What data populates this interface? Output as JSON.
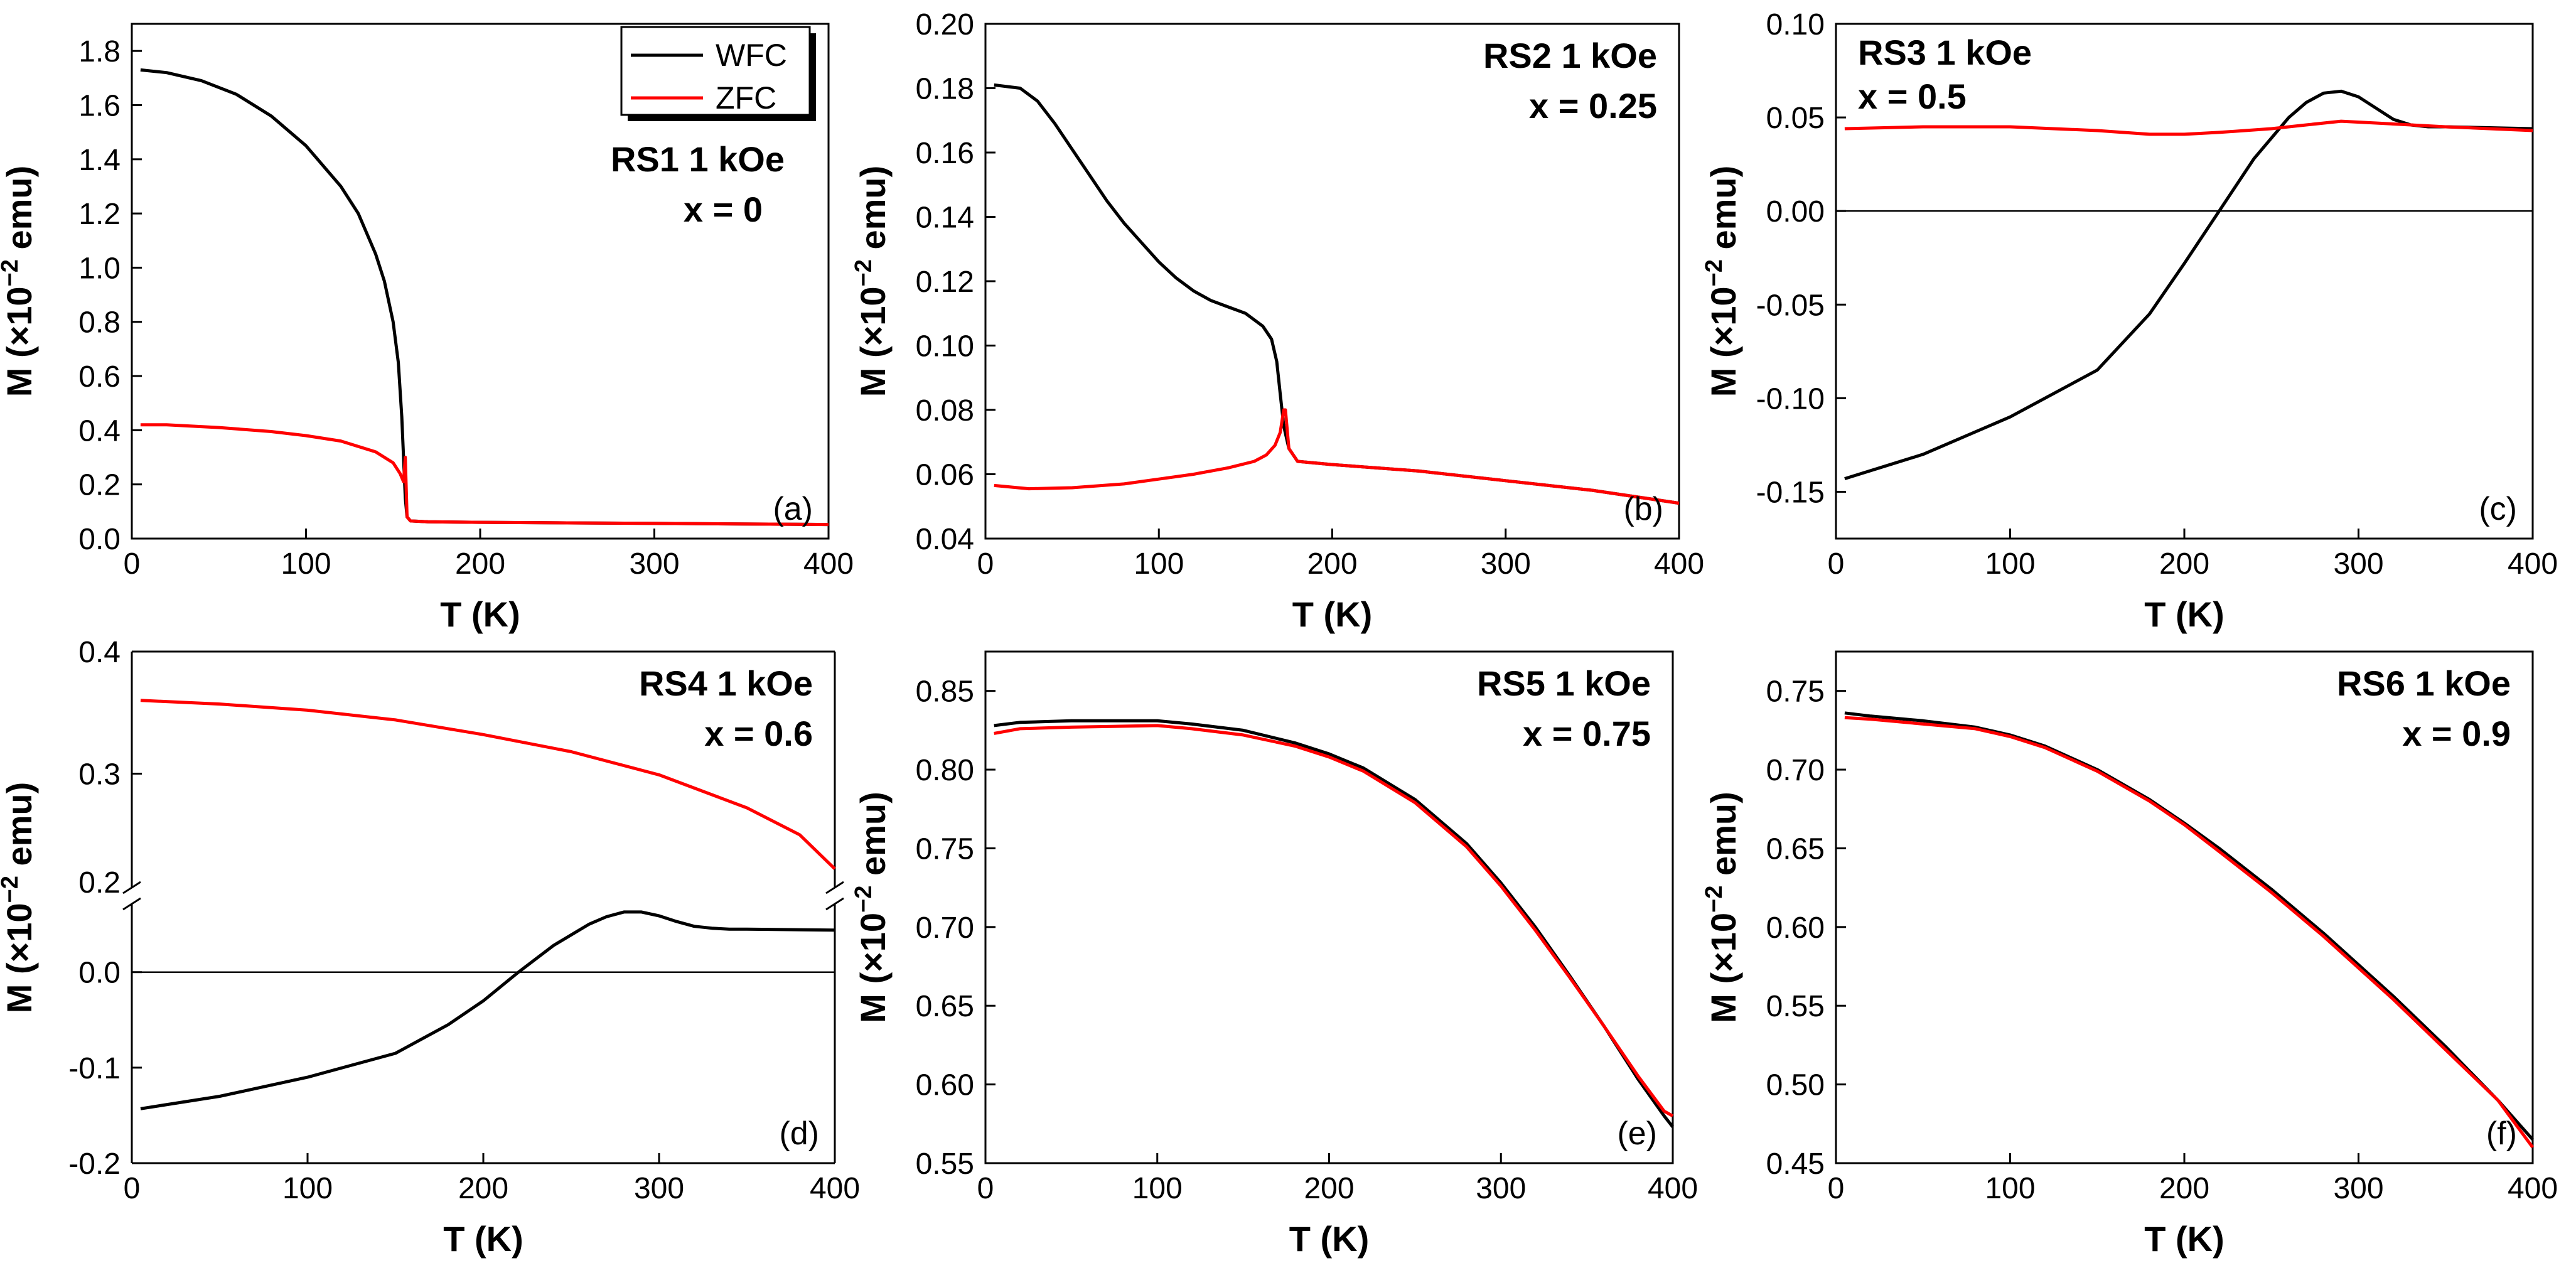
{
  "chart_data": [
    {
      "id": "a",
      "type": "line",
      "panel_letter": "(a)",
      "label_line1": "RS1 1 kOe",
      "label_line2": "x = 0",
      "xlabel": "T (K)",
      "ylabel_prefix": "M (×10",
      "ylabel_exp": "−2",
      "ylabel_suffix": " emu)",
      "xlim": [
        0,
        400
      ],
      "ylim": [
        0,
        1.9
      ],
      "xticks": [
        0,
        100,
        200,
        300,
        400
      ],
      "yticks": [
        0.0,
        0.2,
        0.4,
        0.6,
        0.8,
        1.0,
        1.2,
        1.4,
        1.6,
        1.8
      ],
      "ytick_labels": [
        "0.0",
        "0.2",
        "0.4",
        "0.6",
        "0.8",
        "1.0",
        "1.2",
        "1.4",
        "1.6",
        "1.8"
      ],
      "zero_line": false,
      "legend": {
        "entries": [
          {
            "name": "WFC",
            "color": "#000000"
          },
          {
            "name": "ZFC",
            "color": "#ff0000"
          }
        ]
      },
      "series": [
        {
          "name": "WFC",
          "color": "#000000",
          "x": [
            5,
            20,
            40,
            60,
            80,
            100,
            120,
            130,
            140,
            145,
            150,
            153,
            155,
            156,
            157,
            158,
            160,
            170,
            200,
            250,
            300,
            350,
            400
          ],
          "y": [
            1.73,
            1.72,
            1.69,
            1.64,
            1.56,
            1.45,
            1.3,
            1.2,
            1.05,
            0.95,
            0.8,
            0.65,
            0.45,
            0.3,
            0.15,
            0.08,
            0.065,
            0.062,
            0.06,
            0.058,
            0.056,
            0.054,
            0.052
          ]
        },
        {
          "name": "ZFC",
          "color": "#ff0000",
          "x": [
            5,
            20,
            50,
            80,
            100,
            120,
            140,
            150,
            154,
            156,
            157,
            158,
            160,
            170,
            200,
            250,
            300,
            350,
            400
          ],
          "y": [
            0.42,
            0.42,
            0.41,
            0.395,
            0.38,
            0.36,
            0.32,
            0.28,
            0.24,
            0.21,
            0.3,
            0.08,
            0.065,
            0.062,
            0.06,
            0.058,
            0.056,
            0.054,
            0.052
          ]
        }
      ]
    },
    {
      "id": "b",
      "type": "line",
      "panel_letter": "(b)",
      "label_line1": "RS2 1 kOe",
      "label_line2": "x = 0.25",
      "xlabel": "T (K)",
      "ylabel_prefix": "M (×10",
      "ylabel_exp": "−2",
      "ylabel_suffix": " emu)",
      "xlim": [
        0,
        400
      ],
      "ylim": [
        0.04,
        0.2
      ],
      "xticks": [
        0,
        100,
        200,
        300,
        400
      ],
      "yticks": [
        0.04,
        0.06,
        0.08,
        0.1,
        0.12,
        0.14,
        0.16,
        0.18,
        0.2
      ],
      "ytick_labels": [
        "0.04",
        "0.06",
        "0.08",
        "0.10",
        "0.12",
        "0.14",
        "0.16",
        "0.18",
        "0.20"
      ],
      "zero_line": false,
      "series": [
        {
          "name": "WFC",
          "color": "#000000",
          "x": [
            5,
            20,
            30,
            40,
            50,
            60,
            70,
            80,
            90,
            100,
            110,
            120,
            130,
            140,
            150,
            160,
            165,
            168,
            170,
            172,
            175,
            180,
            200,
            250,
            300,
            350,
            400
          ],
          "y": [
            0.181,
            0.18,
            0.176,
            0.169,
            0.161,
            0.153,
            0.145,
            0.138,
            0.132,
            0.126,
            0.121,
            0.117,
            0.114,
            0.112,
            0.11,
            0.106,
            0.102,
            0.095,
            0.085,
            0.075,
            0.068,
            0.064,
            0.063,
            0.061,
            0.058,
            0.055,
            0.051
          ]
        },
        {
          "name": "ZFC",
          "color": "#ff0000",
          "x": [
            5,
            25,
            50,
            80,
            100,
            120,
            140,
            155,
            162,
            167,
            170,
            172,
            173,
            175,
            180,
            200,
            250,
            300,
            350,
            400
          ],
          "y": [
            0.0565,
            0.0555,
            0.0558,
            0.057,
            0.0585,
            0.06,
            0.062,
            0.064,
            0.066,
            0.069,
            0.073,
            0.08,
            0.08,
            0.068,
            0.064,
            0.063,
            0.061,
            0.058,
            0.055,
            0.051
          ]
        }
      ]
    },
    {
      "id": "c",
      "type": "line",
      "panel_letter": "(c)",
      "label_line1": "RS3 1 kOe",
      "label_line2": "x = 0.5",
      "xlabel": "T (K)",
      "ylabel_prefix": "M (×10",
      "ylabel_exp": "−2",
      "ylabel_suffix": " emu)",
      "xlim": [
        0,
        400
      ],
      "ylim": [
        -0.175,
        0.1
      ],
      "xticks": [
        0,
        100,
        200,
        300,
        400
      ],
      "yticks": [
        -0.15,
        -0.1,
        -0.05,
        0.0,
        0.05,
        0.1
      ],
      "ytick_labels": [
        "-0.15",
        "-0.10",
        "-0.05",
        "0.00",
        "0.05",
        "0.10"
      ],
      "zero_line": true,
      "series": [
        {
          "name": "WFC",
          "color": "#000000",
          "x": [
            5,
            50,
            100,
            150,
            180,
            200,
            220,
            240,
            260,
            270,
            280,
            290,
            300,
            310,
            320,
            330,
            340,
            350,
            400
          ],
          "y": [
            -0.143,
            -0.13,
            -0.11,
            -0.085,
            -0.055,
            -0.028,
            0.0,
            0.028,
            0.05,
            0.058,
            0.063,
            0.064,
            0.061,
            0.055,
            0.049,
            0.046,
            0.045,
            0.045,
            0.044
          ]
        },
        {
          "name": "ZFC",
          "color": "#ff0000",
          "x": [
            5,
            50,
            100,
            150,
            180,
            200,
            220,
            250,
            270,
            290,
            310,
            330,
            350,
            400
          ],
          "y": [
            0.044,
            0.045,
            0.045,
            0.043,
            0.041,
            0.041,
            0.042,
            0.044,
            0.046,
            0.048,
            0.047,
            0.046,
            0.045,
            0.043
          ]
        }
      ]
    },
    {
      "id": "d",
      "type": "line",
      "panel_letter": "(d)",
      "label_line1": "RS4 1 kOe",
      "label_line2": "x = 0.6",
      "xlabel": "T (K)",
      "ylabel_prefix": "M (×10",
      "ylabel_exp": "−2",
      "ylabel_suffix": " emu)",
      "xlim": [
        0,
        400
      ],
      "broken_axis": true,
      "upper_ylim": [
        0.2,
        0.4
      ],
      "upper_yticks": [
        0.2,
        0.3,
        0.4
      ],
      "upper_ytick_labels": [
        "0.2",
        "0.3",
        "0.4"
      ],
      "lower_ylim": [
        -0.2,
        0.08
      ],
      "lower_yticks": [
        -0.2,
        -0.1,
        0.0
      ],
      "lower_ytick_labels": [
        "-0.2",
        "-0.1",
        "0.0"
      ],
      "xticks": [
        0,
        100,
        200,
        300,
        400
      ],
      "zero_line": true,
      "series": [
        {
          "name": "ZFC",
          "color": "#ff0000",
          "segment": "upper",
          "x": [
            5,
            50,
            100,
            150,
            200,
            250,
            300,
            350,
            380,
            400
          ],
          "y": [
            0.36,
            0.357,
            0.352,
            0.344,
            0.332,
            0.318,
            0.299,
            0.272,
            0.25,
            0.222
          ]
        },
        {
          "name": "WFC",
          "color": "#000000",
          "segment": "lower",
          "x": [
            5,
            50,
            100,
            150,
            180,
            200,
            220,
            240,
            260,
            270,
            280,
            290,
            300,
            310,
            320,
            330,
            340,
            350,
            400
          ],
          "y": [
            -0.143,
            -0.13,
            -0.11,
            -0.085,
            -0.055,
            -0.03,
            0.0,
            0.028,
            0.05,
            0.058,
            0.063,
            0.063,
            0.059,
            0.053,
            0.048,
            0.046,
            0.045,
            0.045,
            0.044
          ]
        }
      ]
    },
    {
      "id": "e",
      "type": "line",
      "panel_letter": "(e)",
      "label_line1": "RS5 1 kOe",
      "label_line2": "x = 0.75",
      "xlabel": "T (K)",
      "ylabel_prefix": "M (×10",
      "ylabel_exp": "−2",
      "ylabel_suffix": " emu)",
      "xlim": [
        0,
        400
      ],
      "ylim": [
        0.55,
        0.875
      ],
      "xticks": [
        0,
        100,
        200,
        300,
        400
      ],
      "yticks": [
        0.55,
        0.6,
        0.65,
        0.7,
        0.75,
        0.8,
        0.85
      ],
      "ytick_labels": [
        "0.55",
        "0.60",
        "0.65",
        "0.70",
        "0.75",
        "0.80",
        "0.85"
      ],
      "zero_line": false,
      "series": [
        {
          "name": "WFC",
          "color": "#000000",
          "x": [
            5,
            20,
            50,
            100,
            120,
            150,
            180,
            200,
            220,
            250,
            280,
            300,
            320,
            340,
            360,
            380,
            395,
            400
          ],
          "y": [
            0.828,
            0.83,
            0.831,
            0.831,
            0.829,
            0.825,
            0.817,
            0.81,
            0.801,
            0.781,
            0.753,
            0.728,
            0.7,
            0.669,
            0.637,
            0.603,
            0.58,
            0.573
          ]
        },
        {
          "name": "ZFC",
          "color": "#ff0000",
          "x": [
            5,
            20,
            50,
            100,
            120,
            150,
            180,
            200,
            220,
            250,
            280,
            300,
            320,
            340,
            360,
            380,
            395,
            400
          ],
          "y": [
            0.823,
            0.826,
            0.827,
            0.828,
            0.826,
            0.822,
            0.815,
            0.808,
            0.799,
            0.779,
            0.751,
            0.726,
            0.698,
            0.668,
            0.637,
            0.605,
            0.583,
            0.58
          ]
        }
      ]
    },
    {
      "id": "f",
      "type": "line",
      "panel_letter": "(f)",
      "label_line1": "RS6 1 kOe",
      "label_line2": "x = 0.9",
      "xlabel": "T (K)",
      "ylabel_prefix": "M (×10",
      "ylabel_exp": "−2",
      "ylabel_suffix": " emu)",
      "xlim": [
        0,
        400
      ],
      "ylim": [
        0.45,
        0.775
      ],
      "xticks": [
        0,
        100,
        200,
        300,
        400
      ],
      "yticks": [
        0.45,
        0.5,
        0.55,
        0.6,
        0.65,
        0.7,
        0.75
      ],
      "ytick_labels": [
        "0.45",
        "0.50",
        "0.55",
        "0.60",
        "0.65",
        "0.70",
        "0.75"
      ],
      "zero_line": false,
      "series": [
        {
          "name": "WFC",
          "color": "#000000",
          "x": [
            5,
            20,
            50,
            80,
            100,
            120,
            150,
            180,
            200,
            220,
            250,
            280,
            300,
            320,
            350,
            380,
            400
          ],
          "y": [
            0.736,
            0.734,
            0.731,
            0.727,
            0.722,
            0.715,
            0.7,
            0.681,
            0.666,
            0.65,
            0.624,
            0.596,
            0.576,
            0.556,
            0.524,
            0.49,
            0.465
          ]
        },
        {
          "name": "ZFC",
          "color": "#ff0000",
          "x": [
            5,
            20,
            50,
            80,
            100,
            120,
            150,
            180,
            200,
            220,
            250,
            280,
            300,
            320,
            350,
            380,
            400
          ],
          "y": [
            0.733,
            0.732,
            0.729,
            0.726,
            0.721,
            0.714,
            0.699,
            0.68,
            0.665,
            0.648,
            0.622,
            0.594,
            0.574,
            0.554,
            0.522,
            0.49,
            0.46
          ]
        }
      ]
    }
  ]
}
